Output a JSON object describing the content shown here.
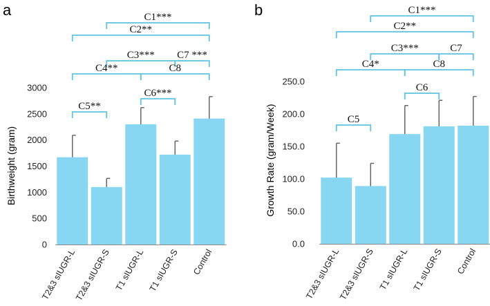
{
  "chart_data": [
    {
      "panel": "a",
      "type": "bar",
      "ylabel": "Birthweight (gram)",
      "categories": [
        "T2&3 sIUGR-L",
        "T2&3 sIUGR-S",
        "T1 sIUGR-L",
        "T1 sIUGR-S",
        "Control"
      ],
      "values": [
        1670,
        1100,
        2300,
        1720,
        2410
      ],
      "errors": [
        420,
        165,
        320,
        260,
        420
      ],
      "ylim": [
        0,
        3000
      ],
      "yticks": [
        "0",
        "500",
        "1000",
        "1500",
        "2000",
        "2500",
        "3000"
      ],
      "bar_color": "#87d7f2",
      "comparisons": [
        {
          "label": "C1***",
          "from": 1,
          "to": 4
        },
        {
          "label": "C2**",
          "from": 0,
          "to": 4
        },
        {
          "label": "C3***",
          "from": 1,
          "to": 3
        },
        {
          "label": "C7 ***",
          "from": 3,
          "to": 4
        },
        {
          "label": "C4**",
          "from": 0,
          "to": 2
        },
        {
          "label": "C8",
          "from": 2,
          "to": 4
        },
        {
          "label": "C6***",
          "from": 2,
          "to": 3
        },
        {
          "label": "C5**",
          "from": 0,
          "to": 1
        }
      ]
    },
    {
      "panel": "b",
      "type": "bar",
      "ylabel": "Growth Rate (gram/Week)",
      "categories": [
        "T2&3 sIUGR-L",
        "T2&3 sIUGR-S",
        "T1 sIUGR-L",
        "T1 sIUGR-S",
        "Control"
      ],
      "values": [
        102,
        89,
        169,
        181,
        182
      ],
      "errors": [
        53,
        35,
        44,
        40,
        45
      ],
      "ylim": [
        0,
        250
      ],
      "yticks": [
        "0.0",
        "50.0",
        "100.0",
        "150.0",
        "200.0",
        "250.0"
      ],
      "bar_color": "#87d7f2",
      "comparisons": [
        {
          "label": "C1***",
          "from": 1,
          "to": 4
        },
        {
          "label": "C2**",
          "from": 0,
          "to": 4
        },
        {
          "label": "C3***",
          "from": 1,
          "to": 3
        },
        {
          "label": "C7",
          "from": 3,
          "to": 4
        },
        {
          "label": "C4*",
          "from": 0,
          "to": 2
        },
        {
          "label": "C8",
          "from": 2,
          "to": 4
        },
        {
          "label": "C6",
          "from": 2,
          "to": 3
        },
        {
          "label": "C5",
          "from": 0,
          "to": 1
        }
      ]
    }
  ]
}
